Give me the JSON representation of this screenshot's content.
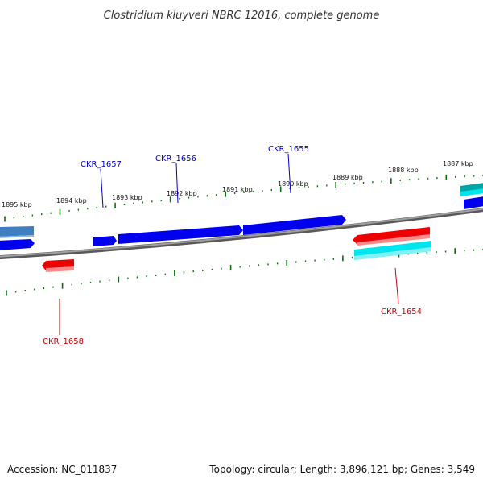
{
  "title": "Clostridium kluyveri NBRC 12016, complete genome",
  "footer": {
    "accession": "Accession: NC_011837",
    "summary": "Topology: circular; Length: 3,896,121 bp; Genes: 3,549"
  },
  "colors": {
    "forward_gene": "#0000ee",
    "reverse_gene": "#ee0000",
    "forward_gene_alt": "#3f7fbf",
    "cyan_feature": "#00e5ee",
    "teal_feature": "#00a5a5",
    "backbone": "#888888",
    "tick": "#007700",
    "label_forward": "#0000cc",
    "label_reverse": "#cc0000"
  },
  "scale_labels": [
    "1895 kbp",
    "1894 kbp",
    "1893 kbp",
    "1892 kbp",
    "1891 kbp",
    "1890 kbp",
    "1889 kbp",
    "1888 kbp",
    "1887 kbp"
  ],
  "genes": [
    {
      "id": "CKR_1658",
      "strand": "reverse"
    },
    {
      "id": "CKR_1657",
      "strand": "forward"
    },
    {
      "id": "CKR_1656",
      "strand": "forward"
    },
    {
      "id": "CKR_1655",
      "strand": "forward"
    },
    {
      "id": "CKR_1654",
      "strand": "reverse"
    }
  ]
}
